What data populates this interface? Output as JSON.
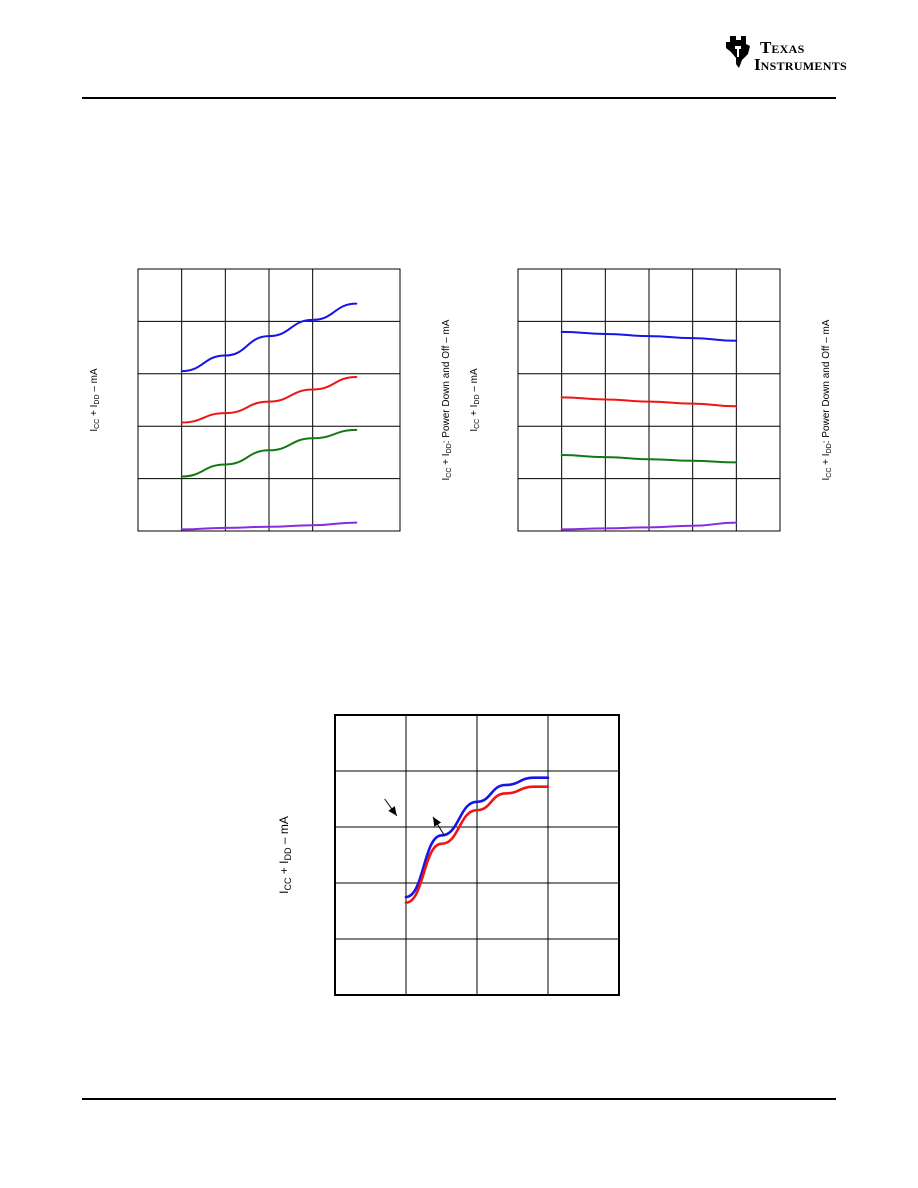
{
  "logo": {
    "line1": "TEXAS",
    "line2": "INSTRUMENTS"
  },
  "colors": {
    "blue": "#1515e6",
    "red": "#ee1515",
    "green": "#137a13",
    "purple": "#8a2be2",
    "grid": "#000000"
  },
  "chart_data": [
    {
      "type": "line",
      "title": "",
      "ylabel": {
        "main": "I",
        "sub1": "CC",
        "mid": " + I",
        "sub2": "DD",
        "tail": " – mA"
      },
      "y2label": {
        "main": "I",
        "sub1": "CC",
        "mid": " + I",
        "sub2": "DD",
        "tail": ": Power Down and Off – mA"
      },
      "grid": {
        "x_divisions": 6,
        "y_divisions": 5,
        "vline_positions": [
          1,
          2,
          3,
          4
        ]
      },
      "x": [
        1,
        2,
        3,
        4,
        5
      ],
      "xlim": [
        0,
        6
      ],
      "ylim": [
        0,
        5
      ],
      "series": [
        {
          "color": "blue",
          "values": [
            3.05,
            3.35,
            3.72,
            4.03,
            4.34
          ]
        },
        {
          "color": "red",
          "values": [
            2.07,
            2.25,
            2.47,
            2.7,
            2.94
          ]
        },
        {
          "color": "green",
          "values": [
            1.04,
            1.27,
            1.54,
            1.77,
            1.93
          ]
        },
        {
          "color": "purple",
          "values": [
            0.03,
            0.06,
            0.08,
            0.11,
            0.16
          ]
        }
      ]
    },
    {
      "type": "line",
      "title": "",
      "ylabel": {
        "main": "I",
        "sub1": "CC",
        "mid": " + I",
        "sub2": "DD",
        "tail": " – mA"
      },
      "y2label": {
        "main": "I",
        "sub1": "CC",
        "mid": " + I",
        "sub2": "DD",
        "tail": ": Power Down and Off – mA"
      },
      "grid": {
        "x_divisions": 6,
        "y_divisions": 5,
        "vline_positions": [
          1,
          2,
          3,
          4,
          5
        ]
      },
      "x": [
        1,
        2,
        3,
        4,
        5
      ],
      "xlim": [
        0,
        6
      ],
      "ylim": [
        0,
        5
      ],
      "series": [
        {
          "color": "blue",
          "values": [
            3.8,
            3.76,
            3.72,
            3.68,
            3.63
          ]
        },
        {
          "color": "red",
          "values": [
            2.55,
            2.51,
            2.47,
            2.43,
            2.38
          ]
        },
        {
          "color": "green",
          "values": [
            1.45,
            1.41,
            1.37,
            1.34,
            1.31
          ]
        },
        {
          "color": "purple",
          "values": [
            0.03,
            0.05,
            0.07,
            0.1,
            0.16
          ]
        }
      ]
    },
    {
      "type": "line",
      "title": "",
      "ylabel": {
        "main": "I",
        "sub1": "CC",
        "mid": " + I",
        "sub2": "DD",
        "tail": " – mA"
      },
      "grid": {
        "x_divisions": 4,
        "y_divisions": 5,
        "vline_positions": [
          1,
          2,
          3
        ]
      },
      "xlim": [
        0,
        4
      ],
      "ylim": [
        0,
        5
      ],
      "series": [
        {
          "color": "blue",
          "x": [
            1.0,
            1.5,
            2.0,
            2.4,
            2.8,
            3.0
          ],
          "values": [
            1.75,
            2.85,
            3.45,
            3.75,
            3.88,
            3.88
          ]
        },
        {
          "color": "red",
          "x": [
            1.0,
            1.5,
            2.0,
            2.4,
            2.8,
            3.0
          ],
          "values": [
            1.65,
            2.7,
            3.3,
            3.6,
            3.72,
            3.72
          ]
        }
      ],
      "annotations": [
        {
          "target": "blue",
          "from": [
            0.7,
            3.5
          ],
          "to": [
            0.87,
            3.2
          ]
        },
        {
          "target": "red",
          "from": [
            1.54,
            2.85
          ],
          "to": [
            1.38,
            3.18
          ]
        }
      ]
    }
  ]
}
